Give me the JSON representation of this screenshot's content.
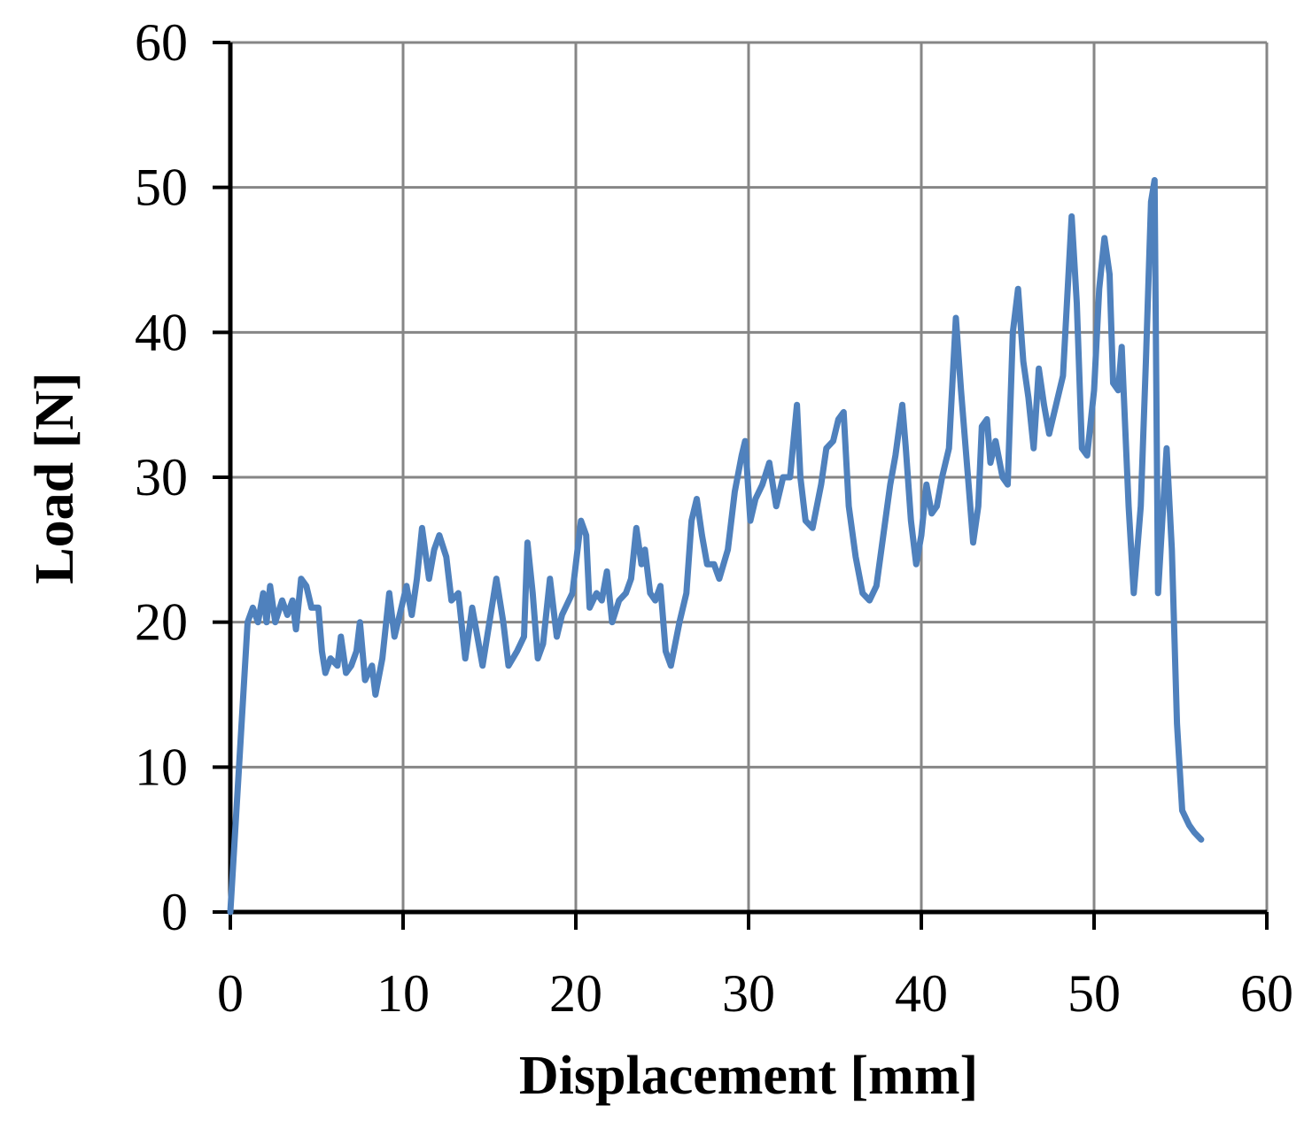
{
  "chart_data": {
    "type": "line",
    "x_label": "Displacement  [mm]",
    "y_label": "Load [N]",
    "xlim": [
      0,
      60
    ],
    "xticks": [
      0,
      10,
      20,
      30,
      40,
      50,
      60
    ],
    "ylim": [
      0,
      60
    ],
    "yticks": [
      0,
      10,
      20,
      30,
      40,
      50,
      60
    ],
    "grid": true,
    "series": [
      {
        "color": "#4f81bd",
        "x": [
          0,
          0.5,
          1,
          1.3,
          1.6,
          1.9,
          2.1,
          2.3,
          2.6,
          3,
          3.3,
          3.6,
          3.8,
          4.1,
          4.4,
          4.7,
          5.1,
          5.3,
          5.5,
          5.8,
          6.2,
          6.4,
          6.7,
          7,
          7.3,
          7.5,
          7.8,
          8.2,
          8.4,
          8.8,
          9.2,
          9.5,
          9.9,
          10.2,
          10.5,
          10.8,
          11.1,
          11.5,
          11.8,
          12.1,
          12.5,
          12.8,
          13.2,
          13.6,
          14,
          14.3,
          14.6,
          15,
          15.4,
          15.8,
          16.1,
          16.6,
          17,
          17.2,
          17.5,
          17.8,
          18.1,
          18.5,
          18.9,
          19.2,
          19.8,
          20.3,
          20.6,
          20.8,
          21.2,
          21.5,
          21.8,
          22.1,
          22.5,
          22.9,
          23.2,
          23.5,
          23.8,
          24,
          24.3,
          24.6,
          24.9,
          25.2,
          25.5,
          26,
          26.4,
          26.7,
          27,
          27.3,
          27.6,
          28,
          28.3,
          28.8,
          29.2,
          29.6,
          29.8,
          30.1,
          30.4,
          30.8,
          31.2,
          31.6,
          32,
          32.4,
          32.8,
          33,
          33.3,
          33.7,
          34.2,
          34.5,
          34.9,
          35.2,
          35.5,
          35.8,
          36.2,
          36.6,
          37,
          37.4,
          37.8,
          38.2,
          38.5,
          38.9,
          39.1,
          39.4,
          39.7,
          40,
          40.3,
          40.6,
          40.9,
          41.2,
          41.6,
          42,
          42.3,
          42.7,
          43,
          43.3,
          43.5,
          43.8,
          44,
          44.3,
          44.7,
          45,
          45.3,
          45.6,
          45.9,
          46.2,
          46.5,
          46.8,
          47.1,
          47.4,
          47.8,
          48.2,
          48.7,
          49,
          49.3,
          49.6,
          50,
          50.3,
          50.6,
          50.9,
          51.1,
          51.4,
          51.6,
          52,
          52.3,
          52.7,
          53,
          53.3,
          53.5,
          53.7,
          54,
          54.2,
          54.5,
          54.8,
          55.1,
          55.5,
          55.8,
          56.2
        ],
        "values": [
          0,
          10,
          20,
          21,
          20,
          22,
          20,
          22.5,
          20,
          21.5,
          20.5,
          21.5,
          19.5,
          23,
          22.5,
          21,
          21,
          18,
          16.5,
          17.5,
          17,
          19,
          16.5,
          17,
          18,
          20,
          16,
          17,
          15,
          17.5,
          22,
          19,
          21,
          22.5,
          20.5,
          23,
          26.5,
          23,
          25,
          26,
          24.5,
          21.5,
          22,
          17.5,
          21,
          19,
          17,
          20,
          23,
          20,
          17,
          18,
          19,
          25.5,
          22,
          17.5,
          18.5,
          23,
          19,
          20.5,
          22,
          27,
          26,
          21,
          22,
          21.5,
          23.5,
          20,
          21.5,
          22,
          23,
          26.5,
          24,
          25,
          22,
          21.5,
          22.5,
          18,
          17,
          20,
          22,
          27,
          28.5,
          26,
          24,
          24,
          23,
          25,
          29,
          31.5,
          32.5,
          27,
          28.5,
          29.5,
          31,
          28,
          30,
          30,
          35,
          30,
          27,
          26.5,
          29.5,
          32,
          32.5,
          34,
          34.5,
          28,
          24.5,
          22,
          21.5,
          22.5,
          26,
          29.5,
          31.5,
          35,
          32,
          27,
          24,
          26,
          29.5,
          27.5,
          28,
          30,
          32,
          41,
          36,
          30,
          25.5,
          28,
          33.5,
          34,
          31,
          32.5,
          30,
          29.5,
          40,
          43,
          38,
          35.5,
          32,
          37.5,
          35,
          33,
          35,
          37,
          48,
          42,
          32,
          31.5,
          36,
          43,
          46.5,
          44,
          36.5,
          36,
          39,
          28,
          22,
          28,
          38,
          49,
          50.5,
          22,
          28,
          32,
          25,
          13,
          7,
          6,
          5.5,
          5
        ]
      }
    ]
  }
}
